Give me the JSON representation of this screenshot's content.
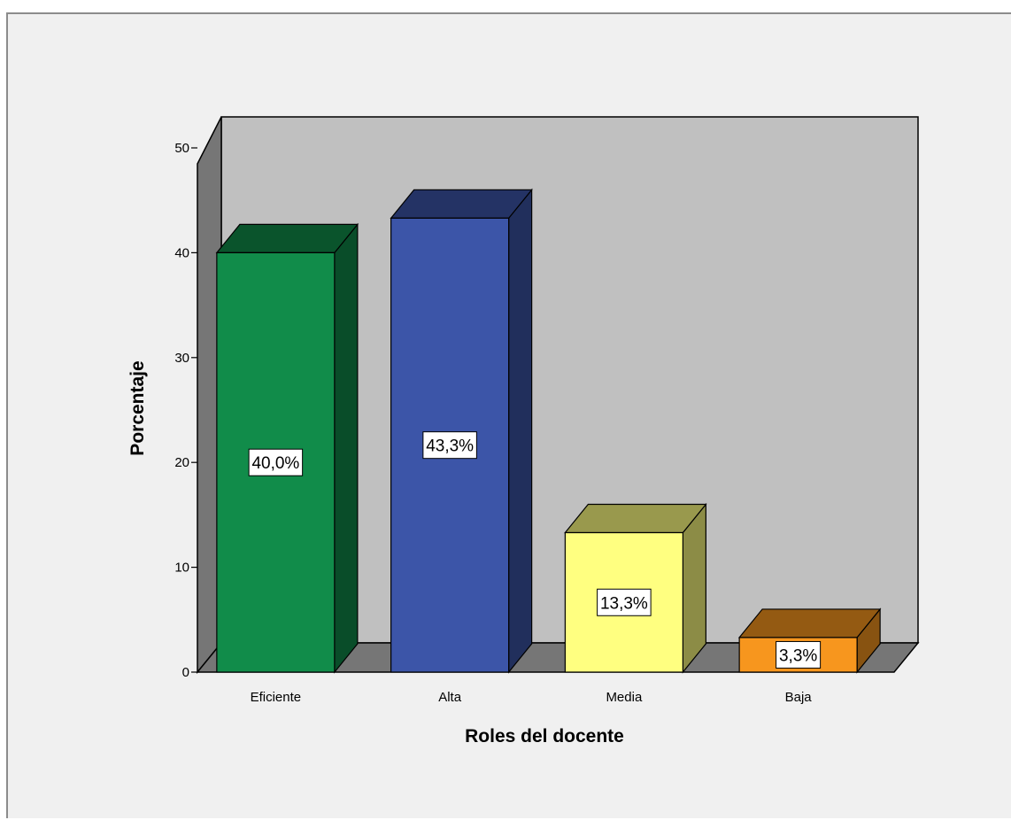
{
  "chart_data": {
    "type": "bar",
    "categories": [
      "Eficiente",
      "Alta",
      "Media",
      "Baja"
    ],
    "values": [
      40.0,
      43.3,
      13.3,
      3.3
    ],
    "data_labels": [
      "40,0%",
      "43,3%",
      "13,3%",
      "3,3%"
    ],
    "colors": [
      "#118c4a",
      "#3c55a8",
      "#ffff80",
      "#f7961e"
    ],
    "title": "",
    "xlabel": "Roles del docente",
    "ylabel": "Porcentaje",
    "ylim": [
      0,
      50
    ],
    "yticks": [
      "0",
      "10",
      "20",
      "30",
      "40",
      "50"
    ],
    "style": "3d-bar",
    "plot_background": "#c0c0c0",
    "page_background": "#f0f0f0",
    "grid": false,
    "legend": "none"
  }
}
